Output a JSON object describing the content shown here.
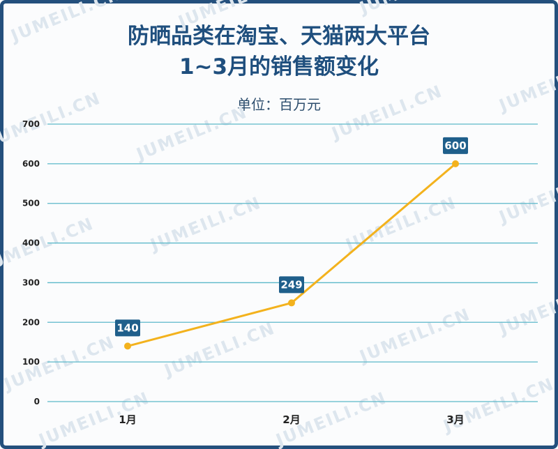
{
  "title_line1": "防晒品类在淘宝、天猫两大平台",
  "title_line2": "1~3月的销售额变化",
  "unit": "单位：百万元",
  "watermark": "JUMEILI.CN",
  "colors": {
    "line": "#f3b21d",
    "grid": "#5bb8c9",
    "label_bg": "#1f5f8b",
    "title": "#1f4f7e",
    "frame": "#24507d"
  },
  "chart_data": {
    "type": "line",
    "categories": [
      "1月",
      "2月",
      "3月"
    ],
    "values": [
      140,
      249,
      600
    ],
    "ylim": [
      0,
      700
    ],
    "yticks": [
      0,
      100,
      200,
      300,
      400,
      500,
      600,
      700
    ],
    "grid": true
  }
}
